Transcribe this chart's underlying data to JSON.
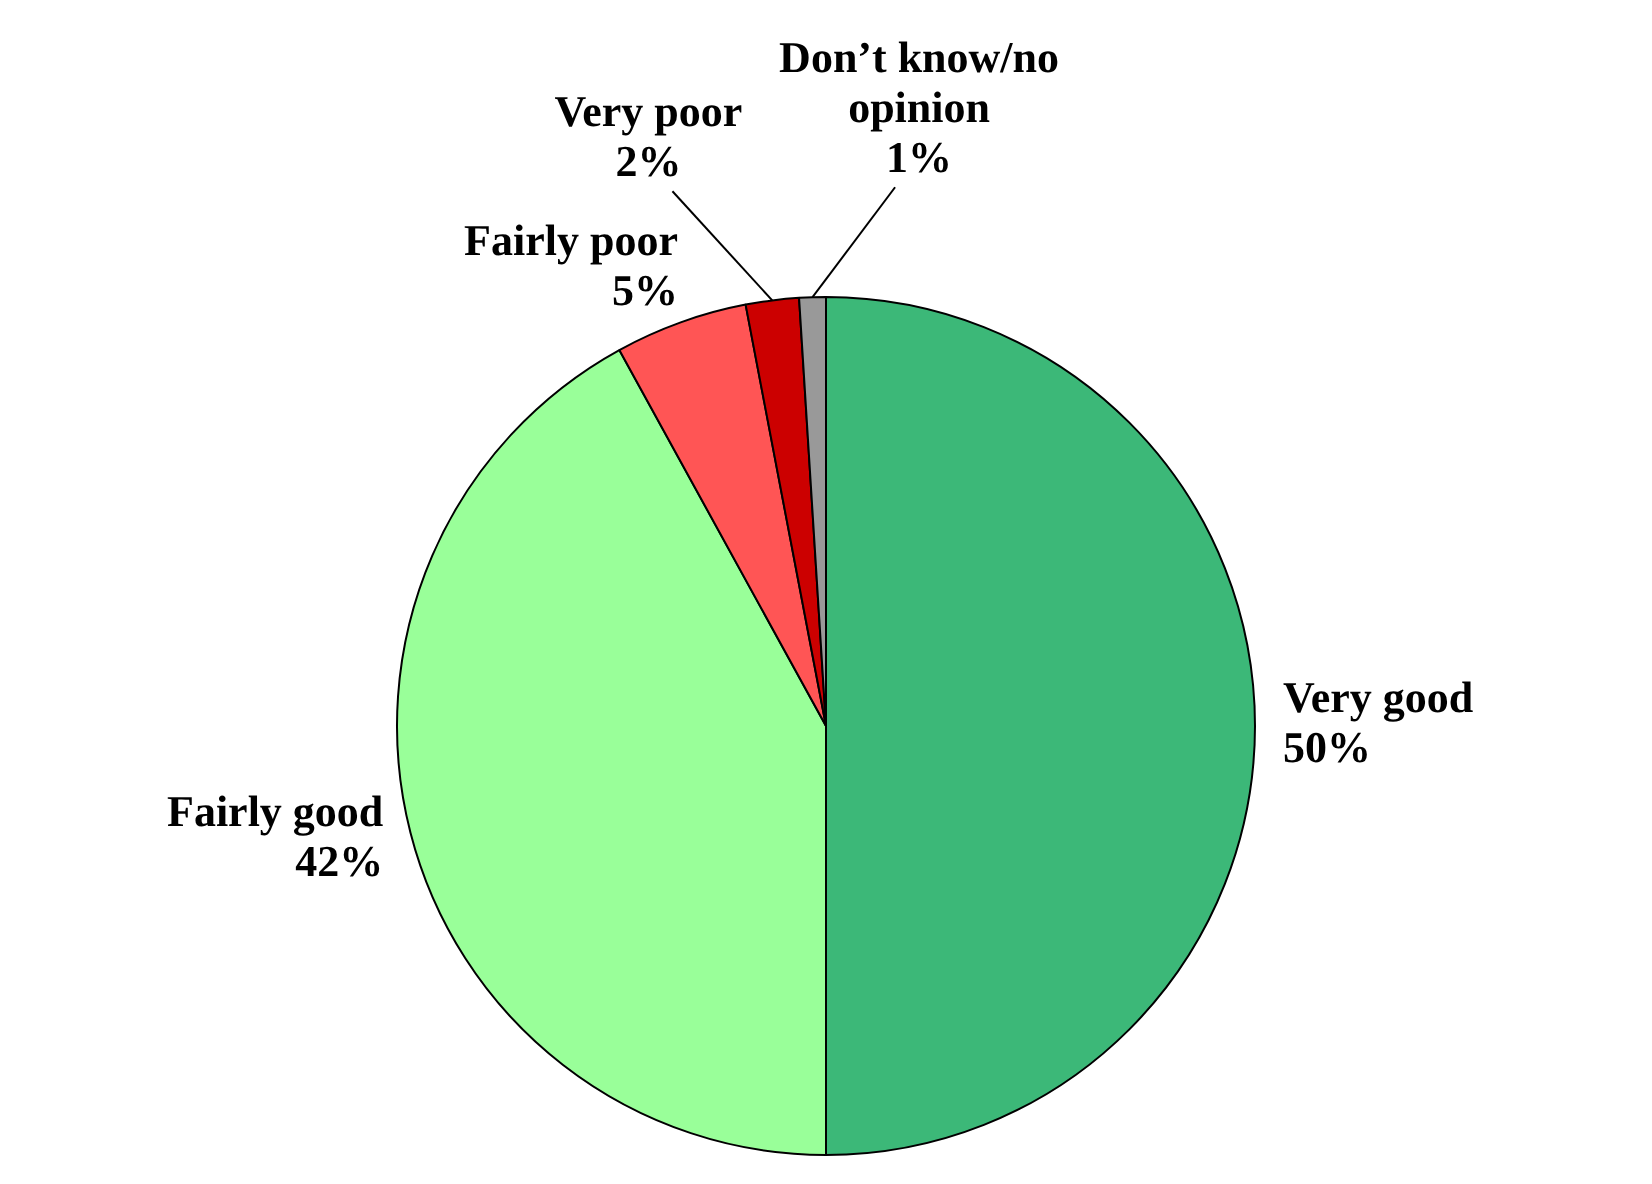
{
  "chart_data": {
    "type": "pie",
    "categories": [
      "Very good",
      "Fairly good",
      "Fairly poor",
      "Very poor",
      "Don’t know/no opinion"
    ],
    "values": [
      50,
      42,
      5,
      2,
      1
    ],
    "value_labels": [
      "50%",
      "42%",
      "5%",
      "2%",
      "1%"
    ],
    "colors": [
      "#3cb878",
      "#99ff99",
      "#ff5555",
      "#cc0000",
      "#999999"
    ],
    "legend": false
  }
}
